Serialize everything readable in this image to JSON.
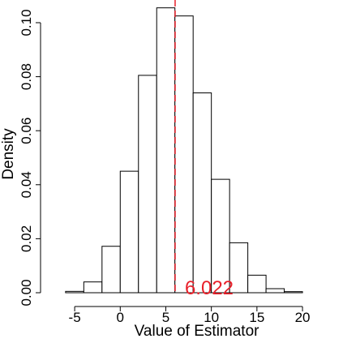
{
  "chart_data": {
    "type": "bar",
    "subtype": "histogram",
    "xlabel": "Value of Estimator",
    "ylabel": "Density",
    "xlim": [
      -7.5,
      24
    ],
    "ylim": [
      0,
      0.106
    ],
    "x_axis_range": [
      -5,
      20
    ],
    "y_axis_range": [
      0,
      0.1
    ],
    "x_ticks": [
      -5,
      0,
      5,
      10,
      15,
      20
    ],
    "y_ticks": [
      0.0,
      0.02,
      0.04,
      0.06,
      0.08,
      0.1
    ],
    "x_tick_labels": [
      "-5",
      "0",
      "5",
      "10",
      "15",
      "20"
    ],
    "y_tick_labels": [
      "0.00",
      "0.02",
      "0.04",
      "0.06",
      "0.08",
      "0.10"
    ],
    "bins": [
      {
        "start": -6,
        "end": -4,
        "density": 0.0005
      },
      {
        "start": -4,
        "end": -2,
        "density": 0.004
      },
      {
        "start": -2,
        "end": 0,
        "density": 0.0172
      },
      {
        "start": 0,
        "end": 2,
        "density": 0.045
      },
      {
        "start": 2,
        "end": 4,
        "density": 0.0805
      },
      {
        "start": 4,
        "end": 6,
        "density": 0.1055
      },
      {
        "start": 6,
        "end": 8,
        "density": 0.1025
      },
      {
        "start": 8,
        "end": 10,
        "density": 0.074
      },
      {
        "start": 10,
        "end": 12,
        "density": 0.042
      },
      {
        "start": 12,
        "end": 14,
        "density": 0.0185
      },
      {
        "start": 14,
        "end": 16,
        "density": 0.0065
      },
      {
        "start": 16,
        "end": 18,
        "density": 0.0015
      },
      {
        "start": 18,
        "end": 20,
        "density": 0.0004
      }
    ],
    "reference_line": {
      "x": 6.022,
      "label": "6.022",
      "color": "#e8202a",
      "style": "dashed"
    },
    "bar_fill": "#ffffff",
    "bar_stroke": "#000000",
    "grid": false,
    "legend": "none"
  }
}
